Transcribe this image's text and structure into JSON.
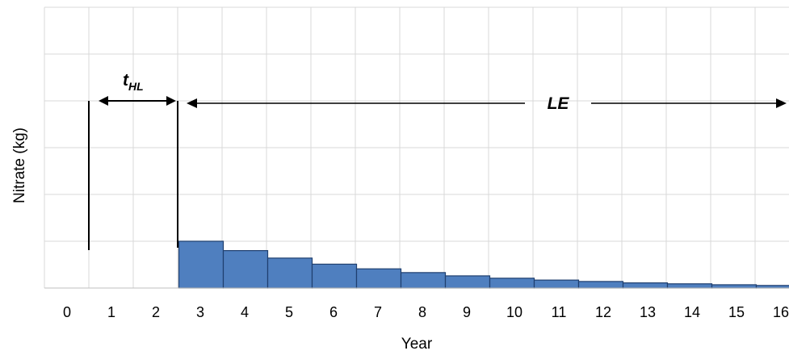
{
  "chart_data": {
    "type": "bar",
    "xlabel": "Year",
    "ylabel": "Nitrate (kg)",
    "categories": [
      "0",
      "1",
      "2",
      "3",
      "4",
      "5",
      "6",
      "7",
      "8",
      "9",
      "10",
      "11",
      "12",
      "13",
      "14",
      "15",
      "16"
    ],
    "values": [
      0,
      0,
      0,
      1.0,
      0.8,
      0.64,
      0.51,
      0.41,
      0.33,
      0.26,
      0.21,
      0.17,
      0.14,
      0.11,
      0.09,
      0.07,
      0.055
    ],
    "ylim": [
      0,
      6
    ],
    "grid": true,
    "colors": {
      "bar_fill": "#4f7fbf",
      "bar_edge": "#1f3f6f",
      "grid": "#d9d9d9"
    },
    "annotations": {
      "thl": {
        "main": "t",
        "sub": "HL"
      },
      "le": {
        "label": "LE"
      }
    }
  }
}
